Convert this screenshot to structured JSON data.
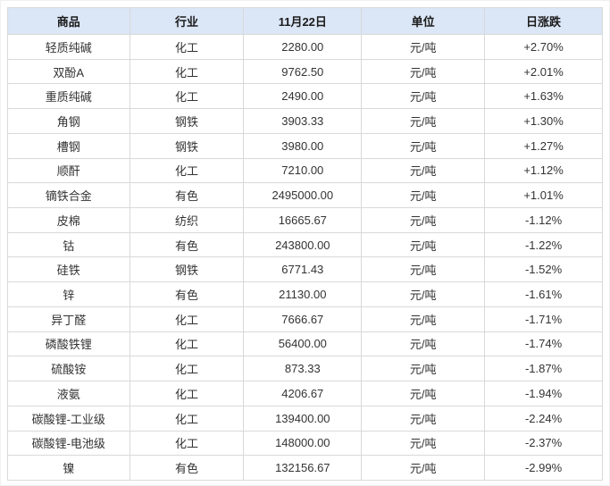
{
  "chart_data": {
    "type": "table",
    "date_column_label": "11月22日",
    "columns": [
      {
        "key": "name",
        "label": "商品"
      },
      {
        "key": "industry",
        "label": "行业"
      },
      {
        "key": "price",
        "label": "11月22日"
      },
      {
        "key": "unit",
        "label": "单位"
      },
      {
        "key": "change",
        "label": "日涨跌"
      }
    ],
    "rows": [
      {
        "name": "轻质纯碱",
        "industry": "化工",
        "price": "2280.00",
        "unit": "元/吨",
        "change": "+2.70%",
        "direction": "up"
      },
      {
        "name": "双酚A",
        "industry": "化工",
        "price": "9762.50",
        "unit": "元/吨",
        "change": "+2.01%",
        "direction": "up"
      },
      {
        "name": "重质纯碱",
        "industry": "化工",
        "price": "2490.00",
        "unit": "元/吨",
        "change": "+1.63%",
        "direction": "up"
      },
      {
        "name": "角钢",
        "industry": "钢铁",
        "price": "3903.33",
        "unit": "元/吨",
        "change": "+1.30%",
        "direction": "up"
      },
      {
        "name": "槽钢",
        "industry": "钢铁",
        "price": "3980.00",
        "unit": "元/吨",
        "change": "+1.27%",
        "direction": "up"
      },
      {
        "name": "顺酐",
        "industry": "化工",
        "price": "7210.00",
        "unit": "元/吨",
        "change": "+1.12%",
        "direction": "up"
      },
      {
        "name": "镝铁合金",
        "industry": "有色",
        "price": "2495000.00",
        "unit": "元/吨",
        "change": "+1.01%",
        "direction": "up"
      },
      {
        "name": "皮棉",
        "industry": "纺织",
        "price": "16665.67",
        "unit": "元/吨",
        "change": "-1.12%",
        "direction": "down"
      },
      {
        "name": "钴",
        "industry": "有色",
        "price": "243800.00",
        "unit": "元/吨",
        "change": "-1.22%",
        "direction": "down"
      },
      {
        "name": "硅铁",
        "industry": "钢铁",
        "price": "6771.43",
        "unit": "元/吨",
        "change": "-1.52%",
        "direction": "down"
      },
      {
        "name": "锌",
        "industry": "有色",
        "price": "21130.00",
        "unit": "元/吨",
        "change": "-1.61%",
        "direction": "down"
      },
      {
        "name": "异丁醛",
        "industry": "化工",
        "price": "7666.67",
        "unit": "元/吨",
        "change": "-1.71%",
        "direction": "down"
      },
      {
        "name": "磷酸铁锂",
        "industry": "化工",
        "price": "56400.00",
        "unit": "元/吨",
        "change": "-1.74%",
        "direction": "down"
      },
      {
        "name": "硫酸铵",
        "industry": "化工",
        "price": "873.33",
        "unit": "元/吨",
        "change": "-1.87%",
        "direction": "down"
      },
      {
        "name": "液氨",
        "industry": "化工",
        "price": "4206.67",
        "unit": "元/吨",
        "change": "-1.94%",
        "direction": "down"
      },
      {
        "name": "碳酸锂-工业级",
        "industry": "化工",
        "price": "139400.00",
        "unit": "元/吨",
        "change": "-2.24%",
        "direction": "down"
      },
      {
        "name": "碳酸锂-电池级",
        "industry": "化工",
        "price": "148000.00",
        "unit": "元/吨",
        "change": "-2.37%",
        "direction": "down"
      },
      {
        "name": "镍",
        "industry": "有色",
        "price": "132156.67",
        "unit": "元/吨",
        "change": "-2.99%",
        "direction": "down"
      }
    ]
  },
  "colors": {
    "up": "#ff2f2f",
    "down": "#1ea52f",
    "header_bg": "#dbe6f6",
    "grid_border": "#d9d9d9"
  }
}
